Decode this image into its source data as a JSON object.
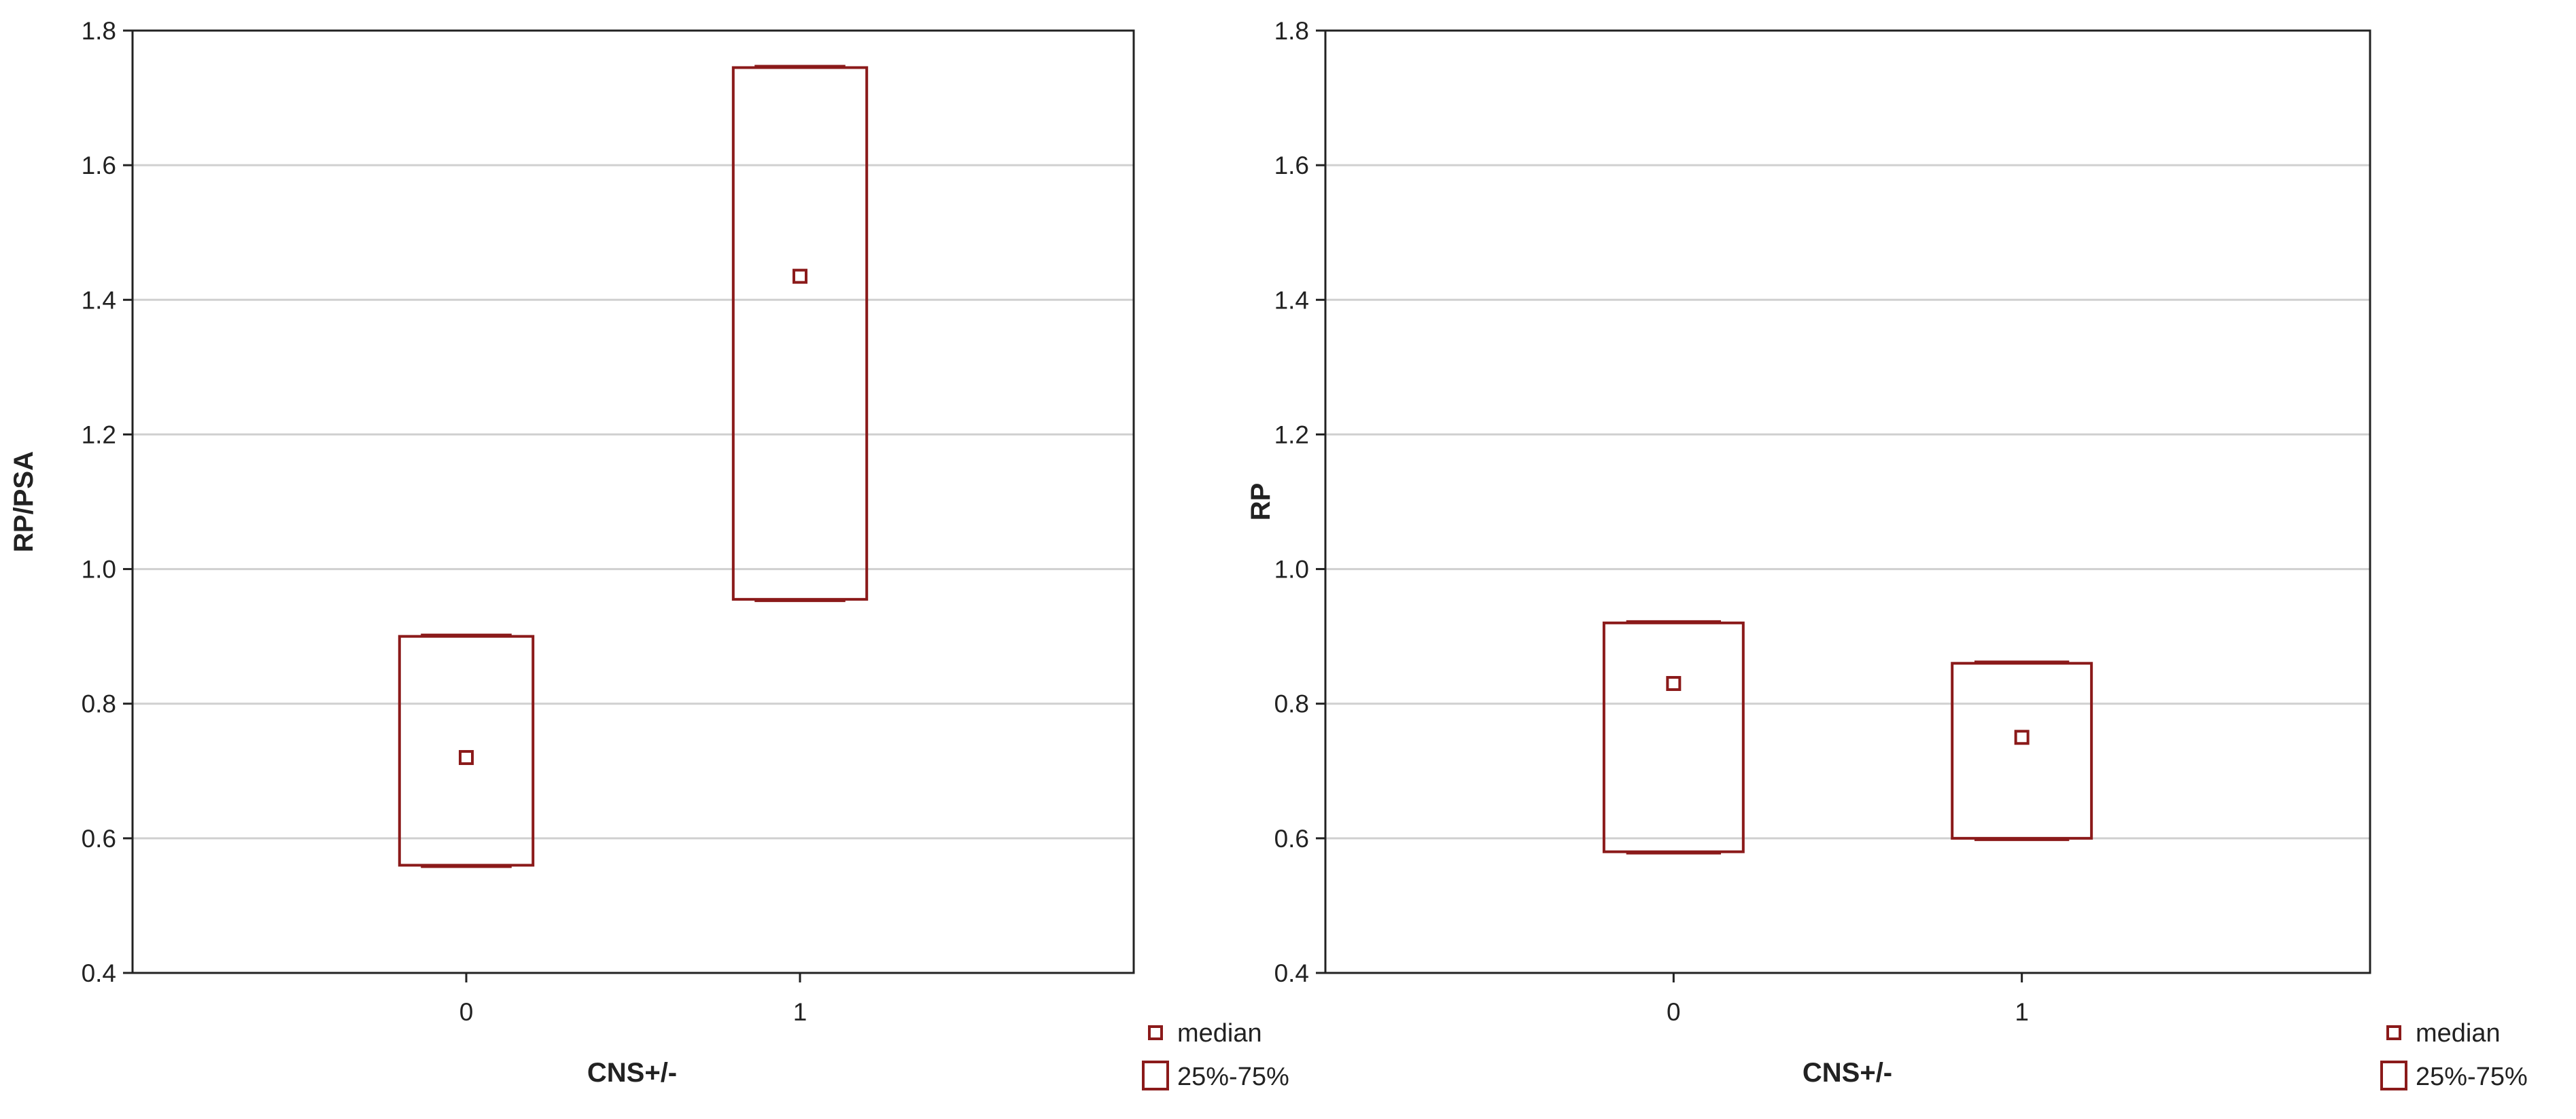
{
  "colors": {
    "box": "#8b1a1a",
    "grid": "#d0d0d0",
    "frame": "#222222",
    "text": "#222222"
  },
  "chart_data": [
    {
      "type": "box",
      "title": "",
      "xlabel": "CNS+/-",
      "ylabel": "RP/PSA",
      "ylim": [
        0.4,
        1.8
      ],
      "yticks": [
        "0.4",
        "0.6",
        "0.8",
        "1.0",
        "1.2",
        "1.4",
        "1.6",
        "1.8"
      ],
      "grid": true,
      "categories": [
        "0",
        "1"
      ],
      "boxes": [
        {
          "category": "0",
          "q1": 0.56,
          "median": 0.72,
          "q3": 0.9
        },
        {
          "category": "1",
          "q1": 0.955,
          "median": 1.435,
          "q3": 1.745
        }
      ],
      "legend": {
        "position": "bottom-right",
        "median_label": "median",
        "box_label": "25%-75%"
      }
    },
    {
      "type": "box",
      "title": "",
      "xlabel": "CNS+/-",
      "ylabel": "RP",
      "ylim": [
        0.4,
        1.8
      ],
      "yticks": [
        "0.4",
        "0.6",
        "0.8",
        "1.0",
        "1.2",
        "1.4",
        "1.6",
        "1.8"
      ],
      "grid": true,
      "categories": [
        "0",
        "1"
      ],
      "boxes": [
        {
          "category": "0",
          "q1": 0.58,
          "median": 0.83,
          "q3": 0.92
        },
        {
          "category": "1",
          "q1": 0.6,
          "median": 0.75,
          "q3": 0.86
        }
      ],
      "legend": {
        "position": "bottom-right",
        "median_label": "median",
        "box_label": "25%-75%"
      }
    }
  ]
}
